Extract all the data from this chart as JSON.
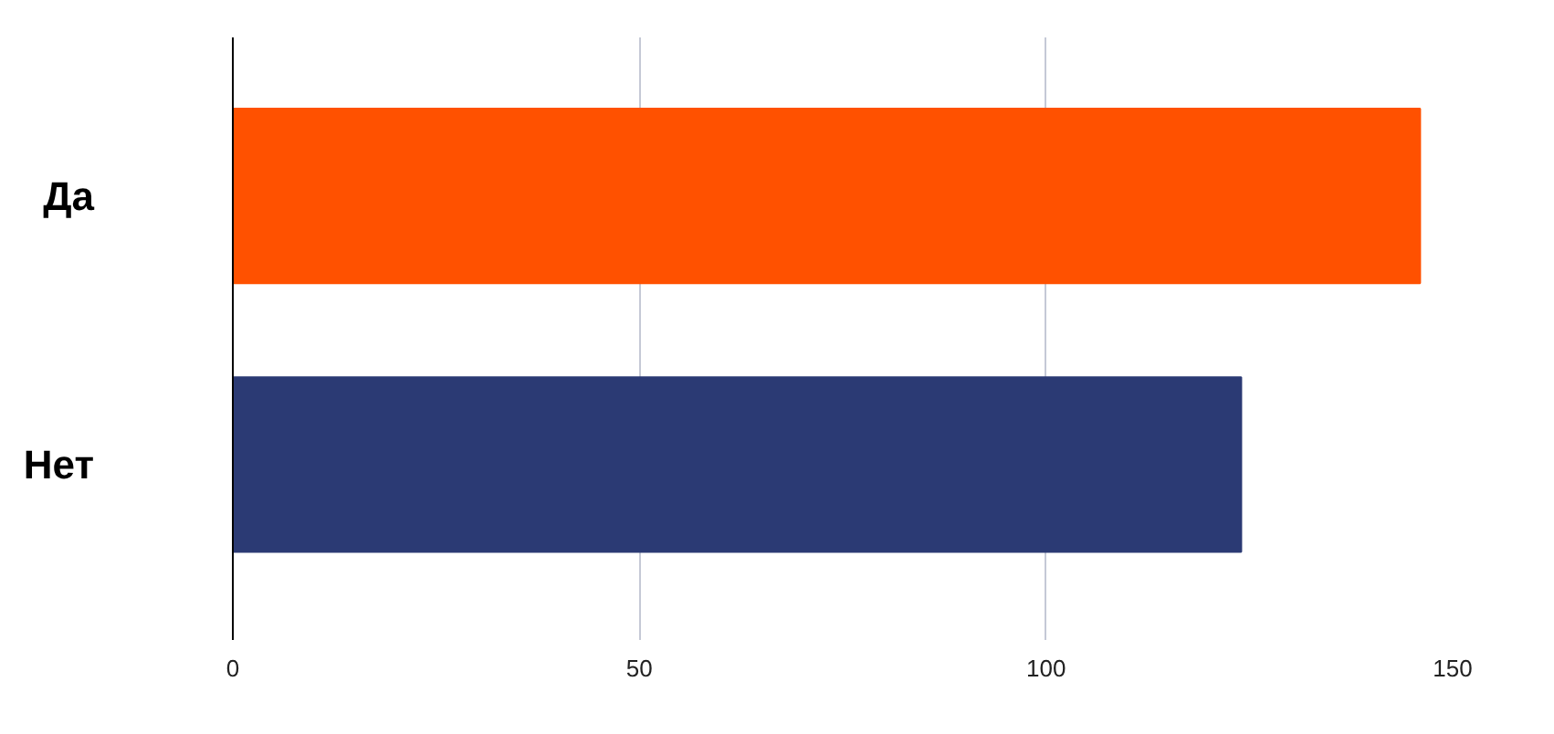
{
  "chart_data": {
    "type": "bar",
    "orientation": "horizontal",
    "categories": [
      "Да",
      "Нет"
    ],
    "values": [
      146,
      124
    ],
    "colors": [
      "#ff5100",
      "#2b3a74"
    ],
    "xlim": [
      0,
      150
    ],
    "xticks": [
      0,
      50,
      100,
      150
    ],
    "grid": "x"
  }
}
